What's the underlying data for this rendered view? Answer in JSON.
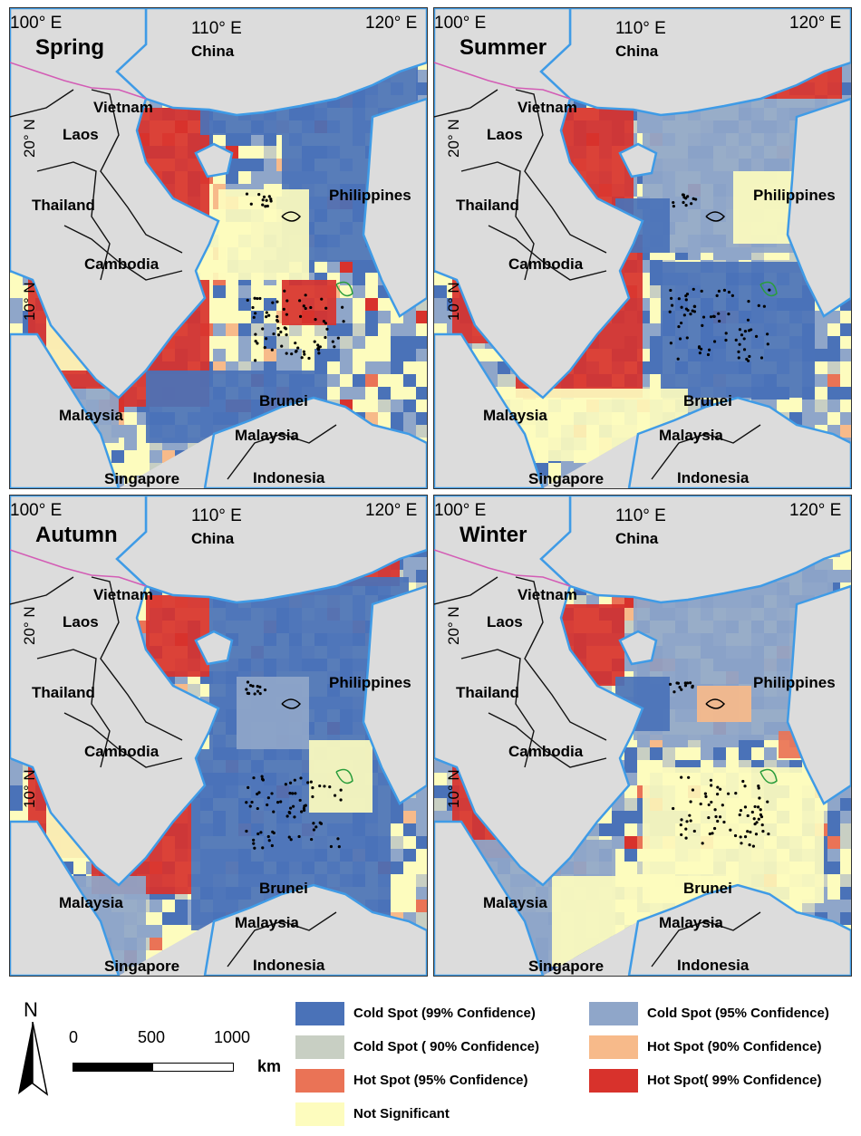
{
  "colors": {
    "cold99": "#4a72b8",
    "cold95": "#8fa6c9",
    "cold90": "#c8cfc3",
    "notsig": "#fdfcbe",
    "hot90": "#f7ba8a",
    "hot95": "#ea7356",
    "hot99": "#d8322c",
    "land": "#dcdcdc",
    "coast": "#3f9be6",
    "border": "#111111",
    "outside_sea": "#cbe9fa"
  },
  "coords": {
    "lon_left": "100° E",
    "lon_mid": "110° E",
    "lon_right": "120° E",
    "lat_top": "20° N",
    "lat_bottom": "10° N"
  },
  "panels": [
    {
      "season": "Spring"
    },
    {
      "season": "Summer"
    },
    {
      "season": "Autumn"
    },
    {
      "season": "Winter"
    }
  ],
  "place_labels": {
    "china": "China",
    "vietnam": "Vietnam",
    "laos": "Laos",
    "thailand": "Thailand",
    "cambodia": "Cambodia",
    "philippines": "Philippines",
    "malaysia": "Malaysia",
    "brunei": "Brunei",
    "singapore": "Singapore",
    "indonesia": "Indonesia"
  },
  "north_arrow": {
    "label": "N"
  },
  "scale_bar": {
    "ticks": [
      "0",
      "500",
      "1000"
    ],
    "unit": "km"
  },
  "legend": [
    {
      "key": "cold99",
      "label": "Cold Spot (99% Confidence)"
    },
    {
      "key": "cold95",
      "label": "Cold Spot (95% Confidence)"
    },
    {
      "key": "cold90",
      "label": "Cold Spot ( 90% Confidence)"
    },
    {
      "key": "hot90",
      "label": "Hot Spot (90% Confidence)"
    },
    {
      "key": "hot95",
      "label": "Hot Spot (95% Confidence)"
    },
    {
      "key": "hot99",
      "label": "Hot Spot( 99% Confidence)"
    },
    {
      "key": "notsig",
      "label": "Not Significant"
    }
  ]
}
